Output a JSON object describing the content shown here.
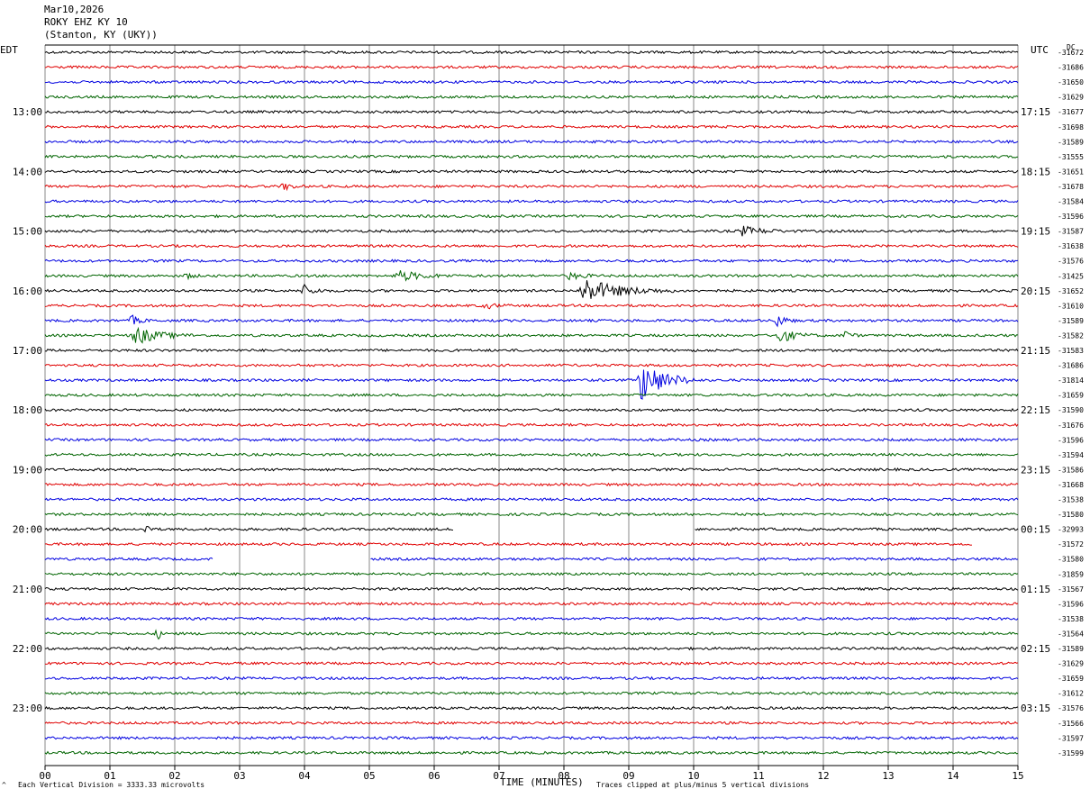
{
  "header": {
    "date": "Mar10,2026",
    "station": "ROKY EHZ KY 10",
    "location": "(Stanton, KY (UKY))"
  },
  "left_zone": "EDT",
  "right_zone": "UTC",
  "dc_label": "DC",
  "footer": {
    "scale": "Each Vertical Division = 3333.33 microvolts",
    "clip": "Traces clipped at plus/minus 5 vertical divisions",
    "corner_mark": "^"
  },
  "colors": {
    "trace_cycle": [
      "#000000",
      "#e00000",
      "#0000e0",
      "#006400"
    ],
    "grid": "#888888"
  },
  "chart_data": {
    "type": "line",
    "title": "ROKY EHZ KY 10",
    "xlabel": "TIME (MINUTES)",
    "ylabel": "",
    "xlim": [
      0,
      15
    ],
    "x_ticks": [
      "00",
      "01",
      "02",
      "03",
      "04",
      "05",
      "06",
      "07",
      "08",
      "09",
      "10",
      "11",
      "12",
      "13",
      "14",
      "15"
    ],
    "edt_labels": [
      "13:00",
      "14:00",
      "15:00",
      "16:00",
      "17:00",
      "18:00",
      "19:00",
      "20:00",
      "21:00",
      "22:00",
      "23:00"
    ],
    "utc_labels": [
      "17:15",
      "18:15",
      "19:15",
      "20:15",
      "21:15",
      "22:15",
      "23:15",
      "00:15",
      "01:15",
      "02:15",
      "03:15"
    ],
    "first_hour_label_row": 4,
    "rows_per_hour": 4,
    "trace_count": 48,
    "dc_offsets": [
      "-31672",
      "-31686",
      "-31650",
      "-31629",
      "-31677",
      "-31698",
      "-31589",
      "-31555",
      "-31651",
      "-31678",
      "-31584",
      "-31596",
      "-31587",
      "-31638",
      "-31576",
      "-31425",
      "-31652",
      "-31610",
      "-31589",
      "-31582",
      "-31583",
      "-31686",
      "-31814",
      "-31659",
      "-31590",
      "-31676",
      "-31596",
      "-31594",
      "-31586",
      "-31668",
      "-31538",
      "-31580",
      "-32993",
      "-31572",
      "-31580",
      "-31859",
      "-31567",
      "-31596",
      "-31538",
      "-31564",
      "-31589",
      "-31629",
      "-31659",
      "-31612",
      "-31576",
      "-31566",
      "-31597",
      "-31599"
    ],
    "events": [
      {
        "row": 9,
        "minute": 3.7,
        "amplitude": 4,
        "duration": 0.3
      },
      {
        "row": 12,
        "minute": 10.75,
        "amplitude": 5,
        "duration": 0.8
      },
      {
        "row": 15,
        "minute": 2.2,
        "amplitude": 3,
        "duration": 0.2
      },
      {
        "row": 15,
        "minute": 5.45,
        "amplitude": 6,
        "duration": 0.9
      },
      {
        "row": 15,
        "minute": 8.1,
        "amplitude": 4,
        "duration": 0.5
      },
      {
        "row": 16,
        "minute": 4.0,
        "amplitude": 6,
        "duration": 0.4
      },
      {
        "row": 16,
        "minute": 8.3,
        "amplitude": 14,
        "duration": 1.4
      },
      {
        "row": 17,
        "minute": 6.8,
        "amplitude": 3,
        "duration": 0.4
      },
      {
        "row": 18,
        "minute": 1.35,
        "amplitude": 5,
        "duration": 0.3
      },
      {
        "row": 18,
        "minute": 11.3,
        "amplitude": 7,
        "duration": 0.3
      },
      {
        "row": 19,
        "minute": 1.4,
        "amplitude": 10,
        "duration": 0.9
      },
      {
        "row": 19,
        "minute": 11.3,
        "amplitude": 9,
        "duration": 0.6
      },
      {
        "row": 19,
        "minute": 12.35,
        "amplitude": 5,
        "duration": 0.2
      },
      {
        "row": 22,
        "minute": 9.2,
        "amplitude": 24,
        "duration": 0.9
      },
      {
        "row": 32,
        "minute": 1.6,
        "amplitude": 9,
        "duration": 0.1
      },
      {
        "row": 39,
        "minute": 1.75,
        "amplitude": 5,
        "duration": 0.1
      }
    ],
    "gaps": [
      {
        "row": 32,
        "from": 6.3,
        "to": 10.0
      },
      {
        "row": 33,
        "from": 14.3,
        "to": 15.0
      },
      {
        "row": 34,
        "from": 2.6,
        "to": 5.0
      }
    ]
  }
}
